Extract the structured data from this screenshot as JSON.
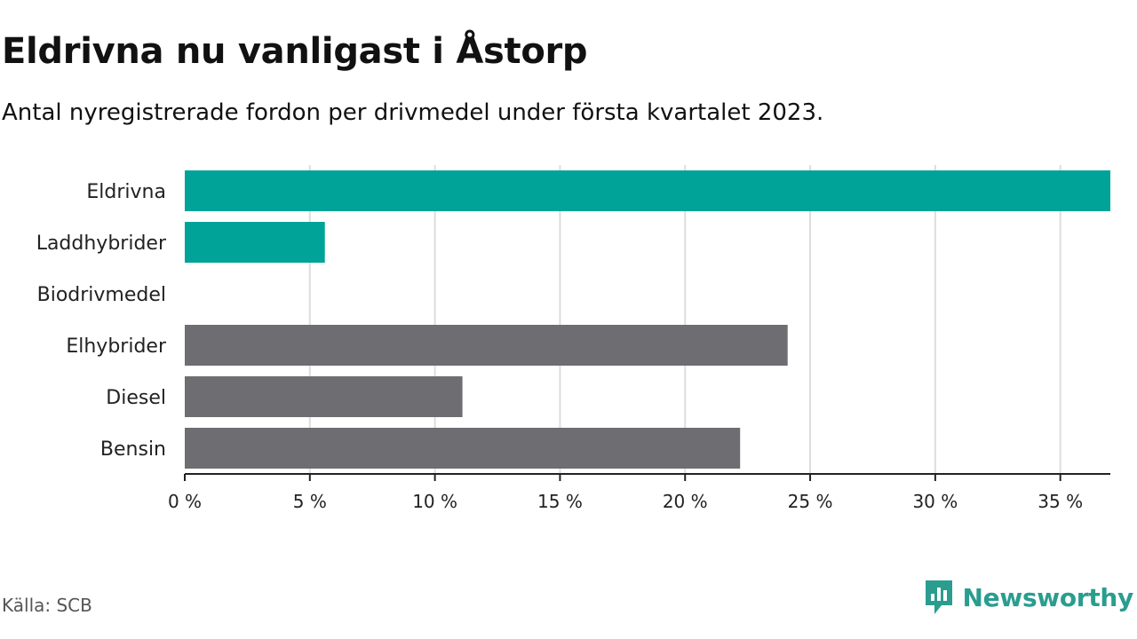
{
  "header": {
    "title": "Eldrivna nu vanligast i Åstorp",
    "subtitle": "Antal nyregistrerade fordon per drivmedel under första kvartalet 2023."
  },
  "footer": {
    "source": "Källa: SCB",
    "brand_name": "Newsworthy",
    "brand_icon": "newsworthy-logo-icon"
  },
  "colors": {
    "highlight": "#00a398",
    "default": "#6e6d72",
    "grid": "#dddddd",
    "axis": "#222222",
    "brand": "#2a9d8f"
  },
  "chart_data": {
    "type": "bar",
    "orientation": "horizontal",
    "categories": [
      "Eldrivna",
      "Laddhybrider",
      "Biodrivmedel",
      "Elhybrider",
      "Diesel",
      "Bensin"
    ],
    "values": [
      37.0,
      5.6,
      0,
      24.1,
      11.1,
      22.2
    ],
    "highlighted": [
      true,
      true,
      true,
      false,
      false,
      false
    ],
    "xlim": [
      0,
      37
    ],
    "xticks": [
      0,
      5,
      10,
      15,
      20,
      25,
      30,
      35
    ],
    "tick_labels": [
      "0 %",
      "5 %",
      "10 %",
      "15 %",
      "20 %",
      "25 %",
      "30 %",
      "35 %"
    ],
    "xlabel": "",
    "ylabel": "",
    "grid": true,
    "legend": "none"
  }
}
